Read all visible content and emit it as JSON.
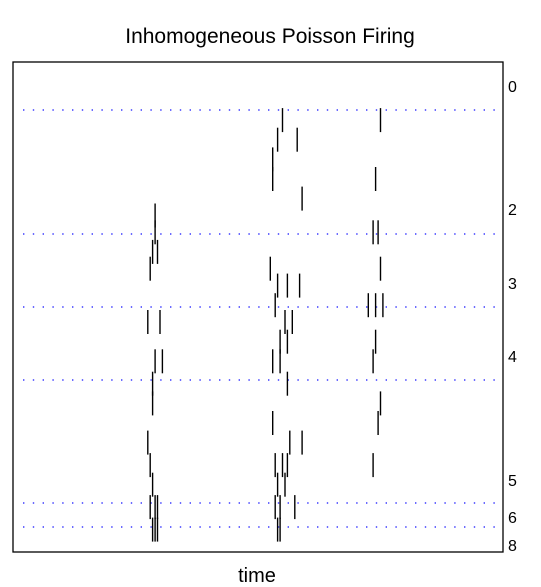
{
  "chart_data": {
    "type": "raster",
    "title": "Inhomogeneous Poisson Firing",
    "xlabel": "time",
    "ylabel": "",
    "grid": "dotted-blue-horizontal",
    "grid_color": "#3a3aff",
    "spike_color": "#000000",
    "ylim": [
      0,
      8.2
    ],
    "y_ticks": [
      {
        "label": "0",
        "value": 0
      },
      {
        "label": "2",
        "value": 2
      },
      {
        "label": "3",
        "value": 3
      },
      {
        "label": "4",
        "value": 4
      },
      {
        "label": "5",
        "value": 5
      },
      {
        "label": "6",
        "value": 6
      },
      {
        "label": "8",
        "value": 8
      }
    ],
    "grid_lines": [
      0.32,
      2.0,
      3.0,
      4.0,
      7.0,
      7.32
    ],
    "trials": [
      {
        "y": 0.5,
        "times": [
          0.55,
          0.75
        ]
      },
      {
        "y": 0.85,
        "times": [
          0.54,
          0.58
        ]
      },
      {
        "y": 1.2,
        "times": [
          0.53
        ]
      },
      {
        "y": 1.55,
        "times": [
          0.53,
          0.74
        ]
      },
      {
        "y": 1.9,
        "times": [
          0.59
        ]
      },
      {
        "y": 2.2,
        "times": [
          0.29
        ]
      },
      {
        "y": 2.5,
        "times": [
          0.29,
          0.735,
          0.745
        ]
      },
      {
        "y": 2.85,
        "times": [
          0.285,
          0.295
        ]
      },
      {
        "y": 3.15,
        "times": [
          0.28,
          0.525,
          0.75
        ]
      },
      {
        "y": 3.45,
        "times": [
          0.54,
          0.56,
          0.585
        ]
      },
      {
        "y": 3.8,
        "times": [
          0.535,
          0.725,
          0.74,
          0.755
        ]
      },
      {
        "y": 4.1,
        "times": [
          0.275,
          0.3,
          0.555,
          0.57
        ]
      },
      {
        "y": 4.45,
        "times": [
          0.56,
          0.545,
          0.74
        ]
      },
      {
        "y": 4.8,
        "times": [
          0.29,
          0.305,
          0.53,
          0.545,
          0.735
        ]
      },
      {
        "y": 5.2,
        "times": [
          0.285,
          0.56
        ]
      },
      {
        "y": 5.55,
        "times": [
          0.285,
          0.75
        ]
      },
      {
        "y": 5.9,
        "times": [
          0.53,
          0.745
        ]
      },
      {
        "y": 6.25,
        "times": [
          0.275,
          0.565,
          0.59
        ]
      },
      {
        "y": 6.65,
        "times": [
          0.28,
          0.535,
          0.55,
          0.56,
          0.735
        ]
      },
      {
        "y": 7.0,
        "times": [
          0.285,
          0.54,
          0.555
        ]
      },
      {
        "y": 7.4,
        "times": [
          0.28,
          0.29,
          0.295,
          0.535,
          0.545,
          0.575
        ]
      },
      {
        "y": 7.8,
        "times": [
          0.285,
          0.29,
          0.295,
          0.54,
          0.545
        ]
      }
    ]
  }
}
